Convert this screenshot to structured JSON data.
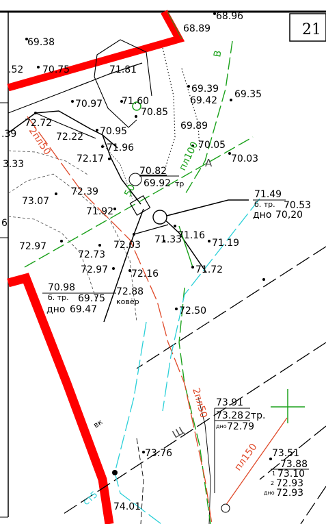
{
  "sheet_number": "21",
  "colors": {
    "road": "#ff0000",
    "water_line": "#1aa11a",
    "sewer_line": "#e04a2a",
    "storm_line": "#2ad0d8",
    "contour": "#000000"
  },
  "spot_heights": [
    "68.96",
    "68.89",
    "69.38",
    "70.75",
    "71.81",
    "69.39",
    "69.42",
    "69.35",
    "70.97",
    "71.60",
    "70.85",
    "72.72",
    "72.22",
    "70.95",
    "69.89",
    "70.05",
    "71.96",
    "72.17",
    "70.03",
    "70.82",
    "72.39",
    "73.07",
    "71.92",
    "72.97",
    "72.03",
    "71.33",
    "71.16",
    "71.19",
    "72.73",
    "72.97",
    "72.16",
    "71.72",
    "72.50",
    "73.76",
    "74.01",
    "73.51",
    "73.88"
  ],
  "partial_labels": [
    ".52",
    ".39",
    "3.33",
    "6"
  ],
  "well_labels": {
    "w1": {
      "top": "70.82",
      "bottom": "69.92",
      "suffix": "тр"
    },
    "w2": {
      "top": "71.49",
      "line2_left": "б. тр.",
      "line2_right": "70.53",
      "line3_left": "дно",
      "line3_right": "70,20"
    },
    "w3": {
      "top": "70.98",
      "line2_left": "б. тр.",
      "line2_right": "69.75",
      "line3_left": "дно",
      "line3_right": "69.47",
      "note": "72.88",
      "note2": "ковёр"
    },
    "w4": {
      "top": "73.91",
      "mid": "73.28",
      "mid_suffix": "2тр.",
      "bottom_prefix": "дно",
      "bottom": "72.79"
    },
    "w5": {
      "top": "73.88",
      "r1_prefix": "1",
      "r1": "73.10",
      "r2_prefix": "2",
      "r2": "72.93",
      "r3_prefix": "дно",
      "r3": "72.93"
    }
  },
  "pipe_labels": {
    "sewer_a": "2пл50",
    "sewer_b": "2пл50",
    "sewer_c": "пл150",
    "water_a": "В",
    "water_b": "пл100",
    "water_c": "50",
    "storm": "ст5",
    "cable": "вк",
    "mark_a": "А",
    "mark_sh": "Щ"
  }
}
